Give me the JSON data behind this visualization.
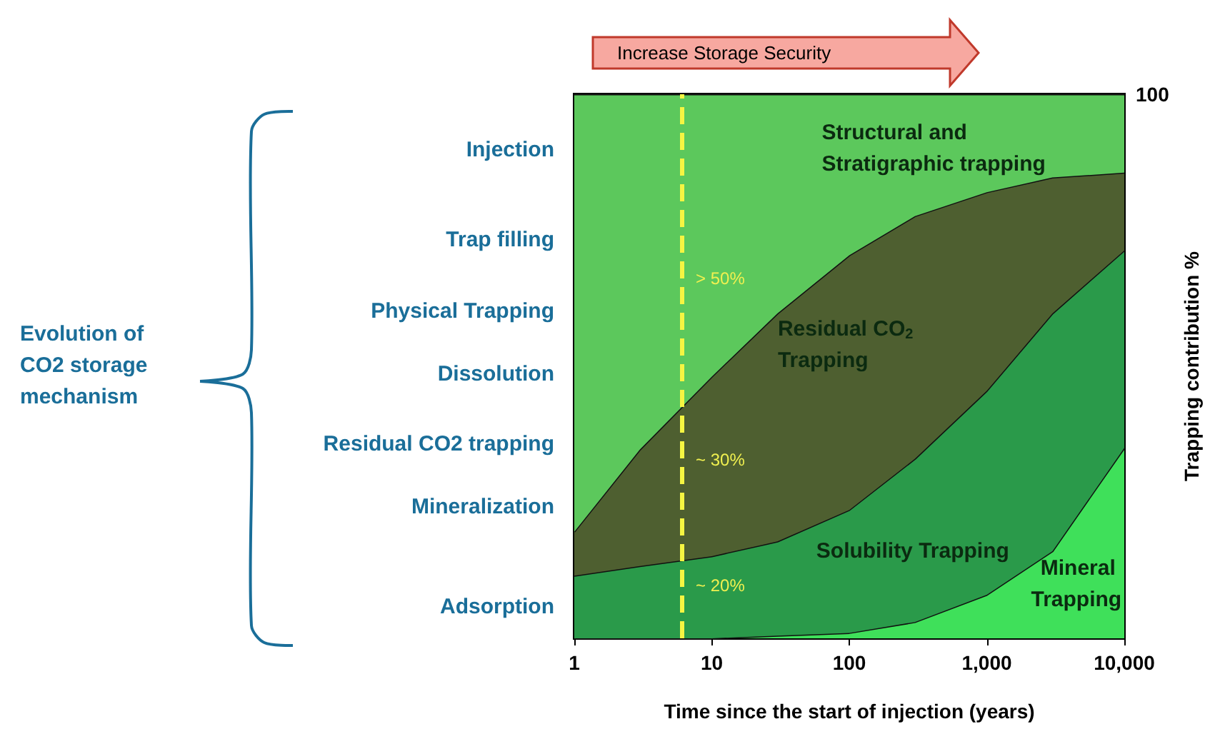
{
  "chart_data": {
    "type": "area",
    "stacked": true,
    "legend": false,
    "xlabel": "Time since the start of injection (years)",
    "ylabel": "Trapping contribution %",
    "log": "x",
    "x": [
      1,
      3,
      10,
      30,
      100,
      300,
      1000,
      3000,
      10000
    ],
    "xlim": [
      1,
      10000
    ],
    "xticks": [
      1,
      10,
      100,
      {
        "value": 1000,
        "label": "1,000"
      },
      {
        "value": 10000,
        "label": "10,000"
      }
    ],
    "ylim": [
      0,
      100
    ],
    "yticks": [
      0,
      100
    ],
    "series": [
      {
        "name": "Mineral Trapping",
        "color": "#3fe05a",
        "values": [
          0,
          0,
          0,
          0.5,
          1,
          3,
          8,
          16,
          35
        ]
      },
      {
        "name": "Solubility Trapping",
        "color": "#2a9a4a",
        "values": [
          11.5,
          13.3,
          15.1,
          17.3,
          22.6,
          30,
          37.5,
          43.7,
          36.3
        ]
      },
      {
        "name": "Residual CO$_{2}$ Trapping",
        "color": "#4e5f30",
        "values": [
          8.1,
          21.4,
          33,
          41.9,
          46.8,
          44.6,
          36.5,
          25,
          14.3
        ]
      },
      {
        "name": "Structural and Stratigraphic trapping",
        "color": "#5cc85c",
        "values": [
          80.4,
          65.3,
          51.9,
          40.3,
          29.6,
          22.4,
          18,
          15.3,
          14.4
        ]
      }
    ],
    "ref_lines": [
      {
        "axis": "x",
        "value": 6,
        "color": "#f5f542",
        "line_style": "dashed"
      }
    ],
    "annotations": [
      "> 50%",
      "~ 30%",
      "~ 20%",
      "Injection",
      "Trap filling",
      "Physical Trapping",
      "Dissolution",
      "Residual CO2 trapping",
      "Mineralization",
      "Adsorption",
      "Evolution of CO2 storage mechanism",
      "Increase Storage Security"
    ]
  }
}
